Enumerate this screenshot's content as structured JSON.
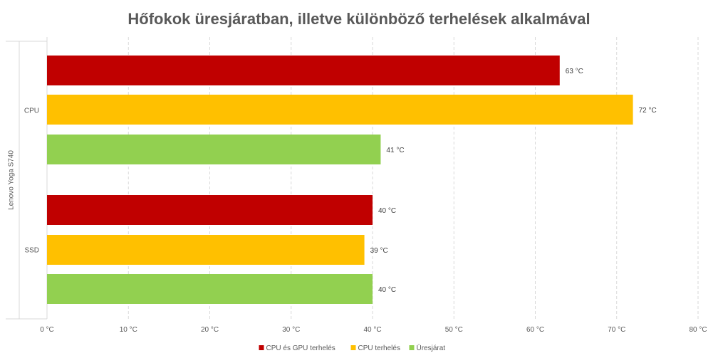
{
  "chart_data": {
    "type": "bar",
    "orientation": "horizontal",
    "title": "Hőfokok üresjáratban, illetve különböző terhelések alkalmával",
    "group_label": "Lenovo Yoga S740",
    "categories": [
      "CPU",
      "SSD"
    ],
    "series": [
      {
        "name": "CPU és GPU terhelés",
        "color": "#C00000",
        "values": [
          63,
          40
        ],
        "labels": [
          "63 °C",
          "40 °C"
        ]
      },
      {
        "name": "CPU terhelés",
        "color": "#FFC000",
        "values": [
          72,
          39
        ],
        "labels": [
          "72 °C",
          "39 °C"
        ]
      },
      {
        "name": "Üresjárat",
        "color": "#92D050",
        "values": [
          41,
          40
        ],
        "labels": [
          "41 °C",
          "40 °C"
        ]
      }
    ],
    "xlim": [
      0,
      80
    ],
    "xticks": [
      0,
      10,
      20,
      30,
      40,
      50,
      60,
      70,
      80
    ],
    "xtick_labels": [
      "0 °C",
      "10 °C",
      "20 °C",
      "30 °C",
      "40 °C",
      "50 °C",
      "60 °C",
      "70 °C",
      "80 °C"
    ],
    "grid": "vertical dashed",
    "legend_position": "bottom"
  }
}
